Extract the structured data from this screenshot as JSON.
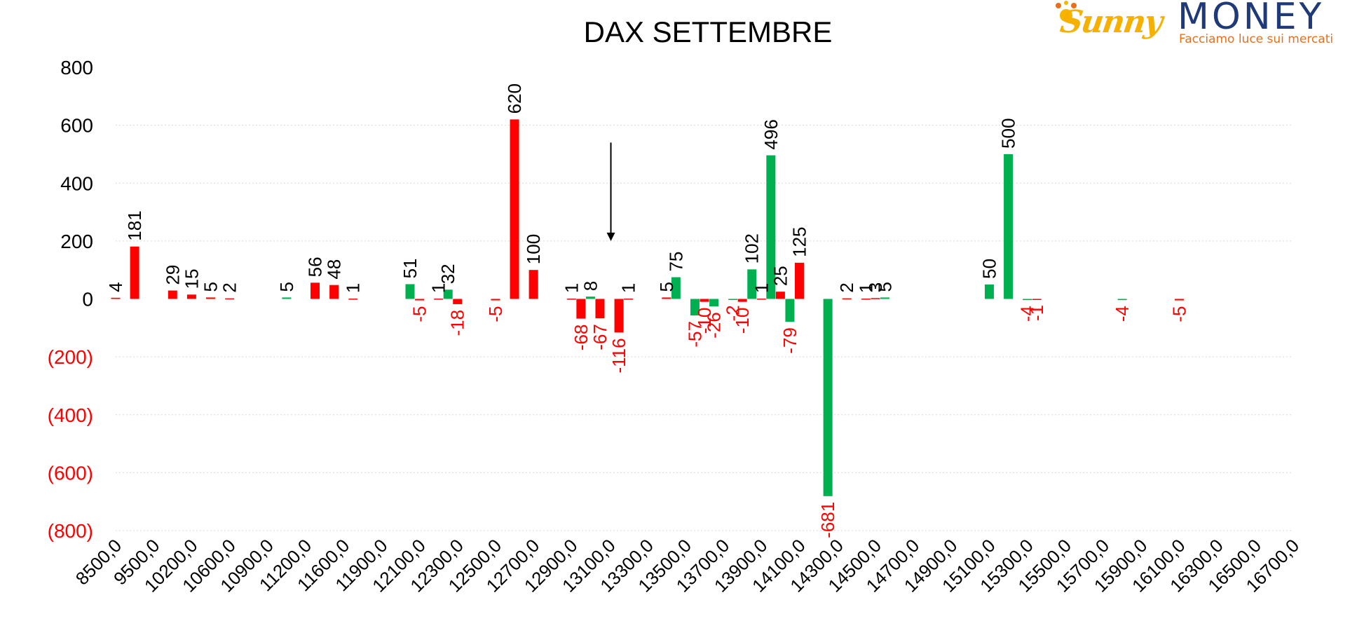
{
  "chart_data": {
    "type": "bar",
    "title": "DAX SETTEMBRE",
    "xlabel": "",
    "ylabel": "",
    "ylim": [
      -800,
      800
    ],
    "y_ticks": [
      {
        "value": 800,
        "label": "800"
      },
      {
        "value": 600,
        "label": "600"
      },
      {
        "value": 400,
        "label": "400"
      },
      {
        "value": 200,
        "label": "200"
      },
      {
        "value": 0,
        "label": "0"
      },
      {
        "value": -200,
        "label": "(200)"
      },
      {
        "value": -400,
        "label": "(400)"
      },
      {
        "value": -600,
        "label": "(600)"
      },
      {
        "value": -800,
        "label": "(800)"
      }
    ],
    "x_tick_labels": [
      "8500,0",
      "9500,0",
      "10200,0",
      "10600,0",
      "10900,0",
      "11200,0",
      "11600,0",
      "11900,0",
      "12100,0",
      "12300,0",
      "12500,0",
      "12700,0",
      "12900,0",
      "13100,0",
      "13300,0",
      "13500,0",
      "13700,0",
      "13900,0",
      "14100,0",
      "14300,0",
      "14500,0",
      "14700,0",
      "14900,0",
      "15100,0",
      "15300,0",
      "15500,0",
      "15700,0",
      "15900,0",
      "16100,0",
      "16300,0",
      "16500,0",
      "16700,0"
    ],
    "grid": true,
    "colors": {
      "call": "#00b050",
      "put": "#ff0000",
      "negative_tick": "#ff0000",
      "annotation_arrow": "#000000"
    },
    "annotation": {
      "type": "arrow",
      "x_index": 13,
      "from_value": 540,
      "to_value": 200
    },
    "bars": [
      {
        "pos": 0.0,
        "series": "put",
        "value": 4,
        "label": "4"
      },
      {
        "pos": 0.5,
        "series": "put",
        "value": 181,
        "label": "181"
      },
      {
        "pos": 1.5,
        "series": "put",
        "value": 29,
        "label": "29"
      },
      {
        "pos": 2.0,
        "series": "put",
        "value": 15,
        "label": "15"
      },
      {
        "pos": 2.5,
        "series": "put",
        "value": 5,
        "label": "5"
      },
      {
        "pos": 3.0,
        "series": "put",
        "value": 2,
        "label": "2"
      },
      {
        "pos": 4.5,
        "series": "call",
        "value": 5,
        "label": "5"
      },
      {
        "pos": 5.25,
        "series": "put",
        "value": 56,
        "label": "56"
      },
      {
        "pos": 5.75,
        "series": "put",
        "value": 48,
        "label": "48"
      },
      {
        "pos": 6.25,
        "series": "put",
        "value": 1,
        "label": "1"
      },
      {
        "pos": 7.75,
        "series": "call",
        "value": 51,
        "label": "51"
      },
      {
        "pos": 8.0,
        "series": "put",
        "value": -5,
        "label": "-5"
      },
      {
        "pos": 8.5,
        "series": "put",
        "value": 1,
        "label": "1"
      },
      {
        "pos": 8.75,
        "series": "call",
        "value": 32,
        "label": "32"
      },
      {
        "pos": 9.0,
        "series": "put",
        "value": -18,
        "label": "-18"
      },
      {
        "pos": 10.0,
        "series": "put",
        "value": -5,
        "label": "-5"
      },
      {
        "pos": 10.5,
        "series": "put",
        "value": 620,
        "label": "620"
      },
      {
        "pos": 11.0,
        "series": "put",
        "value": 100,
        "label": "100"
      },
      {
        "pos": 12.0,
        "series": "put",
        "value": 1,
        "label": "1"
      },
      {
        "pos": 12.25,
        "series": "put",
        "value": -68,
        "label": "-68"
      },
      {
        "pos": 12.5,
        "series": "call",
        "value": 8,
        "label": "8"
      },
      {
        "pos": 12.75,
        "series": "put",
        "value": -67,
        "label": "-67"
      },
      {
        "pos": 13.25,
        "series": "put",
        "value": -116,
        "label": "-116"
      },
      {
        "pos": 13.5,
        "series": "put",
        "value": 1,
        "label": "1"
      },
      {
        "pos": 14.5,
        "series": "put",
        "value": 5,
        "label": "5"
      },
      {
        "pos": 14.75,
        "series": "call",
        "value": 75,
        "label": "75"
      },
      {
        "pos": 15.25,
        "series": "call",
        "value": -57,
        "label": "-57"
      },
      {
        "pos": 15.5,
        "series": "put",
        "value": -10,
        "label": "-10"
      },
      {
        "pos": 15.75,
        "series": "call",
        "value": -26,
        "label": "-26"
      },
      {
        "pos": 16.25,
        "series": "call",
        "value": -2,
        "label": "-2"
      },
      {
        "pos": 16.5,
        "series": "put",
        "value": -10,
        "label": "-10"
      },
      {
        "pos": 16.75,
        "series": "call",
        "value": 102,
        "label": "102"
      },
      {
        "pos": 17.0,
        "series": "put",
        "value": 1,
        "label": "1"
      },
      {
        "pos": 17.25,
        "series": "call",
        "value": 496,
        "label": "496"
      },
      {
        "pos": 17.5,
        "series": "put",
        "value": 25,
        "label": "25"
      },
      {
        "pos": 17.75,
        "series": "call",
        "value": -79,
        "label": "-79"
      },
      {
        "pos": 18.0,
        "series": "put",
        "value": 125,
        "label": "125"
      },
      {
        "pos": 18.75,
        "series": "call",
        "value": -681,
        "label": "-681"
      },
      {
        "pos": 19.25,
        "series": "put",
        "value": 2,
        "label": "2"
      },
      {
        "pos": 19.75,
        "series": "put",
        "value": 1,
        "label": "1"
      },
      {
        "pos": 20.0,
        "series": "put",
        "value": 3,
        "label": "3"
      },
      {
        "pos": 20.25,
        "series": "call",
        "value": 5,
        "label": "5"
      },
      {
        "pos": 23.0,
        "series": "call",
        "value": 50,
        "label": "50"
      },
      {
        "pos": 23.5,
        "series": "call",
        "value": 500,
        "label": "500"
      },
      {
        "pos": 24.0,
        "series": "call",
        "value": -4,
        "label": "-4"
      },
      {
        "pos": 24.25,
        "series": "put",
        "value": -1,
        "label": "-1"
      },
      {
        "pos": 26.5,
        "series": "call",
        "value": -4,
        "label": "-4"
      },
      {
        "pos": 28.0,
        "series": "put",
        "value": -5,
        "label": "-5"
      }
    ]
  },
  "logo": {
    "brand_left": "Sunny",
    "brand_right": "MONEY",
    "tagline": "Facciamo luce sui mercati"
  }
}
